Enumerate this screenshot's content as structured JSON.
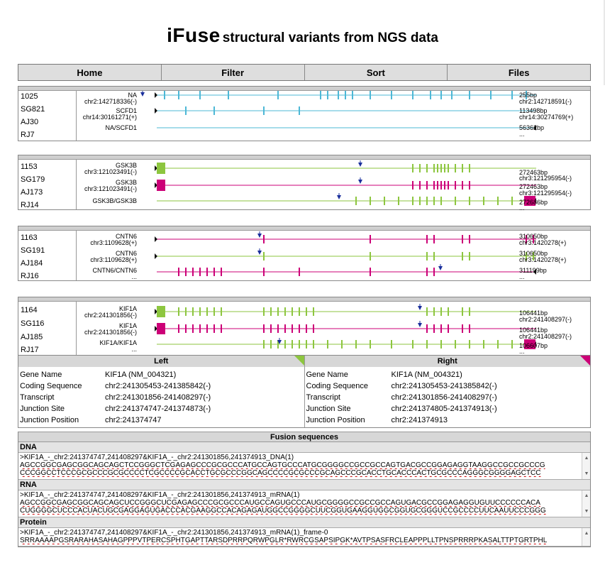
{
  "title": {
    "big": "iFuse",
    "small": "structural variants from NGS data"
  },
  "nav": [
    "Home",
    "Filter",
    "Sort",
    "Files"
  ],
  "panels": [
    {
      "ids": [
        "1025",
        "SG821",
        "AJ30",
        "RJ7"
      ],
      "left": [
        {
          "name": "NA",
          "coord": "chr2:142718336(-)"
        },
        {
          "name": "SCFD1",
          "coord": "chr14:30161271(+)"
        },
        {
          "name": "NA/SCFD1",
          "coord": ""
        }
      ],
      "right": [
        {
          "size": "255bp",
          "coord": "chr2:142718591(-)"
        },
        {
          "size": "113498bp",
          "coord": "chr14:30274769(+)"
        },
        {
          "size": "56362bp",
          "coord": "..."
        }
      ],
      "colors": [
        "#4db8d6",
        "#4db8d6",
        "#4db8d6"
      ]
    },
    {
      "ids": [
        "1153",
        "SG179",
        "AJ173",
        "RJ14"
      ],
      "left": [
        {
          "name": "GSK3B",
          "coord": "chr3:121023491(-)"
        },
        {
          "name": "GSK3B",
          "coord": "chr3:121023491(-)"
        },
        {
          "name": "GSK3B/GSK3B",
          "coord": ""
        }
      ],
      "right": [
        {
          "size": "272463bp",
          "coord": "chr3:121295954(-)"
        },
        {
          "size": "272463bp",
          "coord": "chr3:121295954(-)"
        },
        {
          "size": "272686bp",
          "coord": "..."
        }
      ],
      "colors": [
        "#8dc63f",
        "#cc0077",
        "#8dc63f"
      ]
    },
    {
      "ids": [
        "1163",
        "SG191",
        "AJ184",
        "RJ16"
      ],
      "left": [
        {
          "name": "CNTN6",
          "coord": "chr3:1109628(+)"
        },
        {
          "name": "CNTN6",
          "coord": "chr3:1109628(+)"
        },
        {
          "name": "CNTN6/CNTN6",
          "coord": "..."
        }
      ],
      "right": [
        {
          "size": "310650bp",
          "coord": "chr3:1420278(+)"
        },
        {
          "size": "310650bp",
          "coord": "chr3:1420278(+)"
        },
        {
          "size": "311199bp",
          "coord": "..."
        }
      ],
      "colors": [
        "#cc0077",
        "#8dc63f",
        "#cc0077"
      ]
    },
    {
      "ids": [
        "1164",
        "SG116",
        "AJ185",
        "RJ17"
      ],
      "left": [
        {
          "name": "KIF1A",
          "coord": "chr2:241301856(-)"
        },
        {
          "name": "KIF1A",
          "coord": "chr2:241301856(-)"
        },
        {
          "name": "KIF1A/KIF1A",
          "coord": "..."
        }
      ],
      "right": [
        {
          "size": "106441bp",
          "coord": "chr2:241408297(-)"
        },
        {
          "size": "106441bp",
          "coord": "chr2:241408297(-)"
        },
        {
          "size": "106607bp",
          "coord": "..."
        }
      ],
      "colors": [
        "#8dc63f",
        "#cc0077",
        "#8dc63f"
      ]
    }
  ],
  "detail": {
    "left_title": "Left",
    "right_title": "Right",
    "left": [
      {
        "k": "Gene Name",
        "v": "KIF1A (NM_004321)"
      },
      {
        "k": "Coding Sequence",
        "v": "chr2:241305453-241385842(-)"
      },
      {
        "k": "Transcript",
        "v": "chr2:241301856-241408297(-)"
      },
      {
        "k": "Junction Site",
        "v": "chr2:241374747-241374873(-)"
      },
      {
        "k": "Junction Position",
        "v": "chr2:241374747"
      }
    ],
    "right": [
      {
        "k": "Gene Name",
        "v": "KIF1A (NM_004321)"
      },
      {
        "k": "Coding Sequence",
        "v": "chr2:241305453-241385842(-)"
      },
      {
        "k": "Transcript",
        "v": "chr2:241301856-241408297(-)"
      },
      {
        "k": "Junction Site",
        "v": "chr2:241374805-241374913(-)"
      },
      {
        "k": "Junction Position",
        "v": "chr2:241374913"
      }
    ]
  },
  "fusion": {
    "title": "Fusion sequences",
    "dna": {
      "label": "DNA",
      "header": ">KIF1A_-_chr2:241374747,241408297&KIF1A_-_chr2:241301856,241374913_DNA(1)",
      "line1": "AGCCGGCGAGCGGCAGCAGCTCCGGGCTCGAGAGCCCGCGCCCATGCCAGTGCCCATGCGGGGCCGCCGCCAGTGACGCCGGAGAGGTAAGGCCGCCGCCCG",
      "line2": "CCCGGCCTCCCGCGCCCGCGCCCCTCGCCCCGCACCTGCGCCCGGCAGCCCCGCGCCCGCAGCCCGCACCTGCACCCACTGCGCCCAGGGCGGGGAGCTCC"
    },
    "rna": {
      "label": "RNA",
      "header": ">KIF1A_-_chr2:241374747,241408297&KIF1A_-_chr2:241301856,241374913_mRNA(1)",
      "line1": "AGCCGGCGAGCGGCAGCAGCUCCGGGCUCGAGAGCCCGCGCCCAUGCCAGUGCCCAUGCGGGGCCGCCGCCAGUGACGCCGGAGAGGUGUUCCCCCCACA",
      "line2": "CUGGGGCUCCCACUACUGCGAGGAGUGACCCACGAAGGCCACAGAGAUGGCCGGGGCUUCGGUGAAGGUGGCGGUGCGGGUCCGCCCCUUCAAUUCCCGGG"
    },
    "protein": {
      "label": "Protein",
      "header": ">KIF1A_-_chr2:241374747,241408297&KIF1A_-_chr2:241301856,241374913_mRNA(1)_frame-0",
      "line1": "SRRAAAAPGSRARAHASAHAGPPPVTPERCSPHTGAPTTARSDPRRPQRWPGLR*RWRCGSAPSIPGK*AVTPSASFRCLEAPPPLLTPNSPRRRPKASALTTPTGRTPHL"
    }
  }
}
